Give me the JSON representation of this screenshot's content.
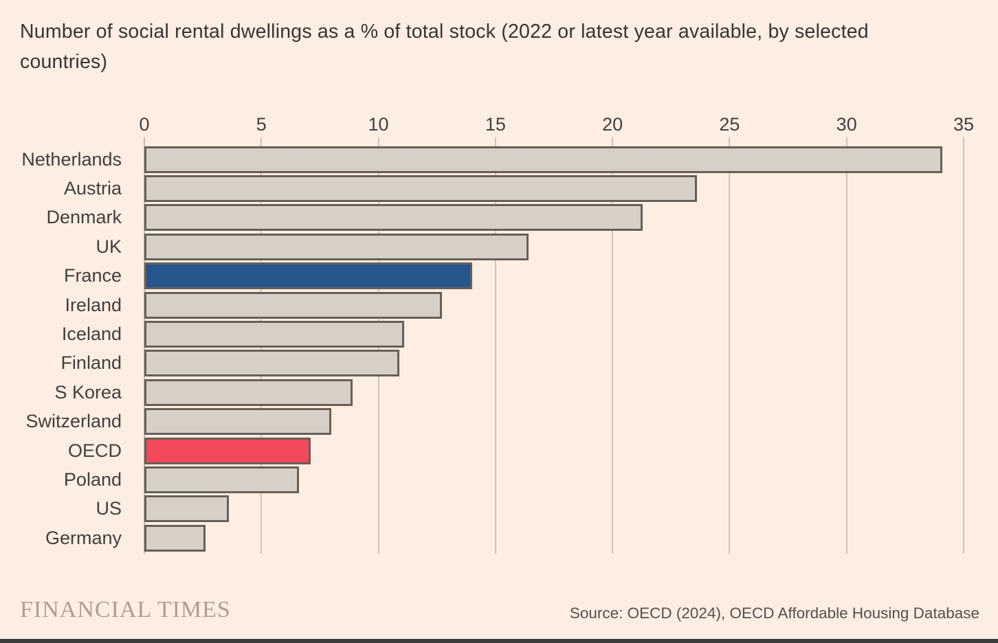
{
  "title": "Number of social rental dwellings as a % of total stock (2022 or latest year available, by selected countries)",
  "footer": {
    "logo": "FINANCIAL TIMES",
    "source": "Source: OECD (2024), OECD Affordable Housing Database"
  },
  "colors": {
    "background": "#fdeee3",
    "bar_fill": "#d8cfc7",
    "bar_border": "#685f56",
    "france_highlight": "#26568b",
    "oecd_highlight": "#f3495c",
    "gridline": "#cdc3ba",
    "title_text": "#3a342e",
    "label_text": "#43403a",
    "logo_text": "#ab9f91",
    "source_text": "#55504a"
  },
  "chart_data": {
    "type": "bar",
    "orientation": "horizontal",
    "title": "Number of social rental dwellings as a % of total stock (2022 or latest year available, by selected countries)",
    "xlabel": "",
    "ylabel": "",
    "xlim": [
      0,
      35
    ],
    "x_ticks": [
      0,
      5,
      10,
      15,
      20,
      25,
      30,
      35
    ],
    "grid": true,
    "legend": false,
    "categories": [
      "Netherlands",
      "Austria",
      "Denmark",
      "UK",
      "France",
      "Ireland",
      "Iceland",
      "Finland",
      "S Korea",
      "Switzerland",
      "OECD",
      "Poland",
      "US",
      "Germany"
    ],
    "values": [
      34.1,
      23.6,
      21.3,
      16.4,
      14.0,
      12.7,
      11.1,
      10.9,
      8.9,
      8.0,
      7.1,
      6.6,
      3.6,
      2.6
    ],
    "highlighted": {
      "France": "#26568b",
      "OECD": "#f3495c"
    }
  }
}
